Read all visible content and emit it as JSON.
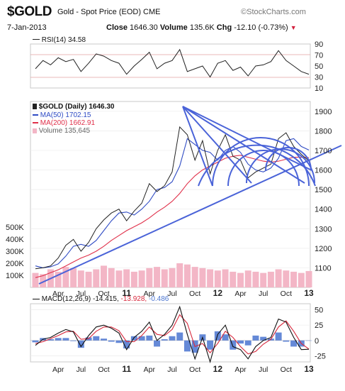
{
  "header": {
    "symbol": "$GOLD",
    "description": "Gold - Spot Price (EOD) CME",
    "brand": "©StockCharts.com",
    "date": "7-Jan-2013",
    "close_label": "Close",
    "close_value": "1646.30",
    "volume_label": "Volume",
    "volume_value": "135.6K",
    "chg_label": "Chg",
    "chg_value": "-12.10 (-0.73%)"
  },
  "rsi": {
    "legend": "RSI(14) 34.58",
    "ticks": [
      "90",
      "70",
      "50",
      "30",
      "10"
    ]
  },
  "price": {
    "legend": {
      "main": "$GOLD (Daily) 1646.30",
      "ma50": "MA(50) 1702.15",
      "ma200": "MA(200) 1662.91",
      "volume": "Volume 135,645"
    },
    "ticks": [
      "1900",
      "1800",
      "1700",
      "1600",
      "1500",
      "1400",
      "1300",
      "1200",
      "1100"
    ],
    "volume_ticks": [
      "500K",
      "400K",
      "300K",
      "200K",
      "100K"
    ]
  },
  "macd": {
    "legend_main": "MACD(12,26,9) -14.415,",
    "legend_signal": "-13.928,",
    "legend_hist": "-0.486",
    "ticks": [
      "50",
      "25",
      "0",
      "-25"
    ]
  },
  "xaxis": {
    "labels": [
      "Apr",
      "Jul",
      "Oct",
      "11",
      "Apr",
      "Jul",
      "Oct",
      "12",
      "Apr",
      "Jul",
      "Oct",
      "13"
    ]
  },
  "colors": {
    "price": "#222222",
    "ma50": "#2f4bc4",
    "ma200": "#e0304a",
    "volume": "#f3b6c6",
    "trendlines": "#4a63d8",
    "macd_line": "#111111",
    "macd_signal": "#d8283c",
    "macd_hist": "#4a74d0",
    "brand": "#777777"
  },
  "chart_data": [
    {
      "type": "line",
      "name": "RSI(14)",
      "x": [
        "2010-01",
        "2010-02",
        "2010-03",
        "2010-04",
        "2010-05",
        "2010-06",
        "2010-07",
        "2010-08",
        "2010-09",
        "2010-10",
        "2010-11",
        "2010-12",
        "2011-01",
        "2011-02",
        "2011-03",
        "2011-04",
        "2011-05",
        "2011-06",
        "2011-07",
        "2011-08",
        "2011-09",
        "2011-10",
        "2011-11",
        "2011-12",
        "2012-01",
        "2012-02",
        "2012-03",
        "2012-04",
        "2012-05",
        "2012-06",
        "2012-07",
        "2012-08",
        "2012-09",
        "2012-10",
        "2012-11",
        "2012-12",
        "2013-01"
      ],
      "series": [
        {
          "name": "RSI(14)",
          "values": [
            45,
            60,
            52,
            65,
            58,
            62,
            40,
            55,
            72,
            68,
            60,
            55,
            35,
            50,
            62,
            75,
            45,
            55,
            60,
            80,
            40,
            45,
            50,
            30,
            55,
            60,
            42,
            48,
            32,
            50,
            52,
            58,
            78,
            60,
            50,
            40,
            35
          ]
        }
      ],
      "ylim": [
        10,
        90
      ],
      "yticks": [
        90,
        70,
        50,
        30,
        10
      ]
    },
    {
      "type": "line",
      "name": "$GOLD (Daily)",
      "x": [
        "2010-01",
        "2010-02",
        "2010-03",
        "2010-04",
        "2010-05",
        "2010-06",
        "2010-07",
        "2010-08",
        "2010-09",
        "2010-10",
        "2010-11",
        "2010-12",
        "2011-01",
        "2011-02",
        "2011-03",
        "2011-04",
        "2011-05",
        "2011-06",
        "2011-07",
        "2011-08",
        "2011-09",
        "2011-10",
        "2011-11",
        "2011-12",
        "2012-01",
        "2012-02",
        "2012-03",
        "2012-04",
        "2012-05",
        "2012-06",
        "2012-07",
        "2012-08",
        "2012-09",
        "2012-10",
        "2012-11",
        "2012-12",
        "2013-01"
      ],
      "series": [
        {
          "name": "$GOLD (Daily)",
          "values": [
            1095,
            1100,
            1110,
            1150,
            1215,
            1245,
            1185,
            1230,
            1300,
            1345,
            1380,
            1400,
            1340,
            1390,
            1430,
            1530,
            1490,
            1520,
            1590,
            1820,
            1780,
            1650,
            1750,
            1580,
            1700,
            1780,
            1670,
            1650,
            1560,
            1590,
            1610,
            1630,
            1760,
            1790,
            1720,
            1680,
            1646
          ]
        },
        {
          "name": "MA(50)",
          "values": [
            1110,
            1100,
            1105,
            1120,
            1160,
            1210,
            1220,
            1210,
            1240,
            1290,
            1340,
            1380,
            1385,
            1370,
            1400,
            1440,
            1500,
            1510,
            1540,
            1620,
            1760,
            1730,
            1700,
            1690,
            1650,
            1700,
            1720,
            1690,
            1630,
            1600,
            1590,
            1610,
            1660,
            1750,
            1760,
            1720,
            1702
          ]
        },
        {
          "name": "MA(200)",
          "values": [
            1050,
            1060,
            1075,
            1090,
            1110,
            1130,
            1150,
            1165,
            1185,
            1210,
            1240,
            1265,
            1290,
            1310,
            1330,
            1355,
            1385,
            1410,
            1440,
            1480,
            1530,
            1570,
            1600,
            1620,
            1640,
            1660,
            1670,
            1675,
            1665,
            1655,
            1645,
            1640,
            1645,
            1655,
            1665,
            1665,
            1663
          ]
        }
      ],
      "ylim": [
        1000,
        1950
      ],
      "yticks": [
        1900,
        1800,
        1700,
        1600,
        1500,
        1400,
        1300,
        1200,
        1100
      ]
    },
    {
      "type": "bar",
      "name": "Volume",
      "x": [
        "2010-01",
        "2010-02",
        "2010-03",
        "2010-04",
        "2010-05",
        "2010-06",
        "2010-07",
        "2010-08",
        "2010-09",
        "2010-10",
        "2010-11",
        "2010-12",
        "2011-01",
        "2011-02",
        "2011-03",
        "2011-04",
        "2011-05",
        "2011-06",
        "2011-07",
        "2011-08",
        "2011-09",
        "2011-10",
        "2011-11",
        "2011-12",
        "2012-01",
        "2012-02",
        "2012-03",
        "2012-04",
        "2012-05",
        "2012-06",
        "2012-07",
        "2012-08",
        "2012-09",
        "2012-10",
        "2012-11",
        "2012-12",
        "2013-01"
      ],
      "series": [
        {
          "name": "Volume",
          "values": [
            120000,
            110000,
            150000,
            130000,
            170000,
            160000,
            140000,
            130000,
            150000,
            180000,
            160000,
            140000,
            150000,
            130000,
            140000,
            160000,
            170000,
            150000,
            160000,
            200000,
            190000,
            170000,
            160000,
            150000,
            140000,
            150000,
            130000,
            120000,
            140000,
            130000,
            120000,
            130000,
            150000,
            140000,
            130000,
            120000,
            135645
          ]
        }
      ],
      "ylim": [
        0,
        500000
      ],
      "yticks": [
        500000,
        400000,
        300000,
        200000,
        100000
      ]
    },
    {
      "type": "line",
      "name": "MACD(12,26,9)",
      "x": [
        "2010-01",
        "2010-02",
        "2010-03",
        "2010-04",
        "2010-05",
        "2010-06",
        "2010-07",
        "2010-08",
        "2010-09",
        "2010-10",
        "2010-11",
        "2010-12",
        "2011-01",
        "2011-02",
        "2011-03",
        "2011-04",
        "2011-05",
        "2011-06",
        "2011-07",
        "2011-08",
        "2011-09",
        "2011-10",
        "2011-11",
        "2011-12",
        "2012-01",
        "2012-02",
        "2012-03",
        "2012-04",
        "2012-05",
        "2012-06",
        "2012-07",
        "2012-08",
        "2012-09",
        "2012-10",
        "2012-11",
        "2012-12",
        "2013-01"
      ],
      "series": [
        {
          "name": "MACD",
          "values": [
            -8,
            2,
            5,
            12,
            18,
            14,
            -10,
            8,
            22,
            25,
            20,
            12,
            -15,
            5,
            15,
            30,
            0,
            10,
            25,
            55,
            10,
            -30,
            5,
            -35,
            10,
            25,
            -10,
            -15,
            -30,
            -10,
            0,
            5,
            35,
            30,
            5,
            -15,
            -14.415
          ]
        },
        {
          "name": "Signal",
          "values": [
            -5,
            -2,
            3,
            8,
            14,
            15,
            2,
            3,
            15,
            22,
            22,
            16,
            -2,
            -2,
            8,
            22,
            10,
            8,
            18,
            42,
            28,
            -10,
            -5,
            -20,
            -5,
            15,
            5,
            -10,
            -22,
            -18,
            -6,
            2,
            22,
            32,
            15,
            -5,
            -13.928
          ]
        },
        {
          "name": "Histogram",
          "values": [
            -3,
            4,
            2,
            4,
            4,
            -1,
            -12,
            5,
            7,
            3,
            -2,
            -4,
            -13,
            7,
            7,
            8,
            -10,
            2,
            7,
            13,
            -18,
            -20,
            10,
            -15,
            15,
            10,
            -15,
            -5,
            -8,
            8,
            6,
            3,
            13,
            -2,
            -10,
            -10,
            -0.486
          ]
        }
      ],
      "ylim": [
        -35,
        60
      ],
      "yticks": [
        50,
        25,
        0,
        -25
      ]
    }
  ]
}
